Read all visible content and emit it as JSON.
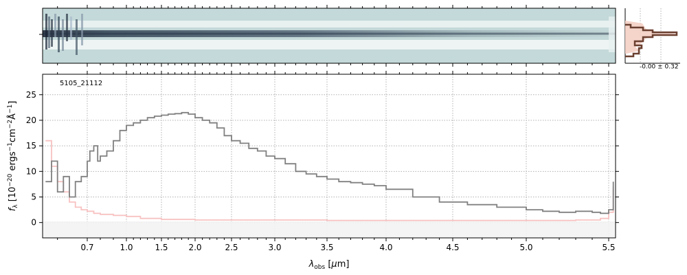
{
  "chart_data": [
    {
      "type": "heatmap",
      "panel": "2d-spectrum",
      "description_colormap": "bone_r",
      "has_axes_ticks": false
    },
    {
      "type": "line",
      "panel": "1d-spectrum",
      "annotation": "5105_21112",
      "xlabel_html": "λobs [μm]",
      "ylabel_html": "fλ [10⁻²⁰ ergs⁻¹cm⁻²Å⁻¹]",
      "x_scale": "spectral (non-linear)",
      "x_ticks": [
        0.7,
        1.0,
        1.5,
        2.0,
        2.5,
        3.0,
        3.5,
        4.0,
        4.5,
        5.0,
        5.5
      ],
      "x_tick_labels": [
        "0.7",
        "1.0",
        "1.5",
        "2.0",
        "2.5",
        "3.0",
        "3.5",
        "4.0",
        "4.5",
        "5.0",
        "5.5"
      ],
      "xlim": [
        0.55,
        5.53
      ],
      "y_ticks": [
        0,
        5,
        10,
        15,
        20,
        25
      ],
      "y_tick_labels": [
        "0",
        "5",
        "10",
        "15",
        "20",
        "25"
      ],
      "ylim": [
        -3,
        29
      ],
      "grid": true,
      "series": [
        {
          "color": "#808080",
          "x": [
            0.56,
            0.58,
            0.6,
            0.62,
            0.64,
            0.66,
            0.68,
            0.7,
            0.72,
            0.75,
            0.78,
            0.8,
            0.85,
            0.9,
            0.95,
            1.0,
            1.1,
            1.2,
            1.3,
            1.4,
            1.5,
            1.6,
            1.7,
            1.8,
            1.9,
            2.0,
            2.1,
            2.2,
            2.3,
            2.4,
            2.5,
            2.6,
            2.7,
            2.8,
            2.9,
            3.0,
            3.1,
            3.2,
            3.3,
            3.4,
            3.5,
            3.6,
            3.7,
            3.8,
            3.9,
            4.0,
            4.2,
            4.4,
            4.6,
            4.8,
            5.0,
            5.1,
            5.2,
            5.3,
            5.4,
            5.45,
            5.5,
            5.52
          ],
          "y": [
            8,
            12,
            6,
            9,
            5,
            8,
            9,
            12,
            14,
            15,
            12,
            13,
            14,
            16,
            18,
            19,
            19.5,
            20,
            20.5,
            20.8,
            21,
            21.2,
            21.3,
            21.5,
            21.2,
            20.5,
            20,
            19.5,
            18.5,
            17,
            16,
            15.5,
            14.5,
            14,
            13,
            12.5,
            11.5,
            10,
            9.5,
            9,
            8.5,
            8,
            7.8,
            7.5,
            7.2,
            6.5,
            5,
            4,
            3.5,
            3,
            2.5,
            2.2,
            2,
            2.2,
            2,
            1.8,
            2.5,
            8
          ]
        },
        {
          "color": "#f8c2c2",
          "x": [
            0.56,
            0.58,
            0.6,
            0.62,
            0.64,
            0.66,
            0.68,
            0.7,
            0.75,
            0.8,
            0.9,
            1.0,
            1.2,
            1.5,
            2.0,
            2.5,
            3.0,
            3.5,
            4.0,
            4.5,
            5.0,
            5.3,
            5.45,
            5.5,
            5.52
          ],
          "y": [
            16,
            11,
            8,
            6,
            4,
            3,
            2.5,
            2.2,
            1.8,
            1.6,
            1.4,
            1.2,
            0.8,
            0.6,
            0.5,
            0.5,
            0.5,
            0.4,
            0.4,
            0.4,
            0.4,
            0.5,
            0.8,
            2,
            7
          ]
        }
      ]
    },
    {
      "type": "line",
      "panel": "profile",
      "annotation": "-0.00 ± 0.32"
    }
  ]
}
